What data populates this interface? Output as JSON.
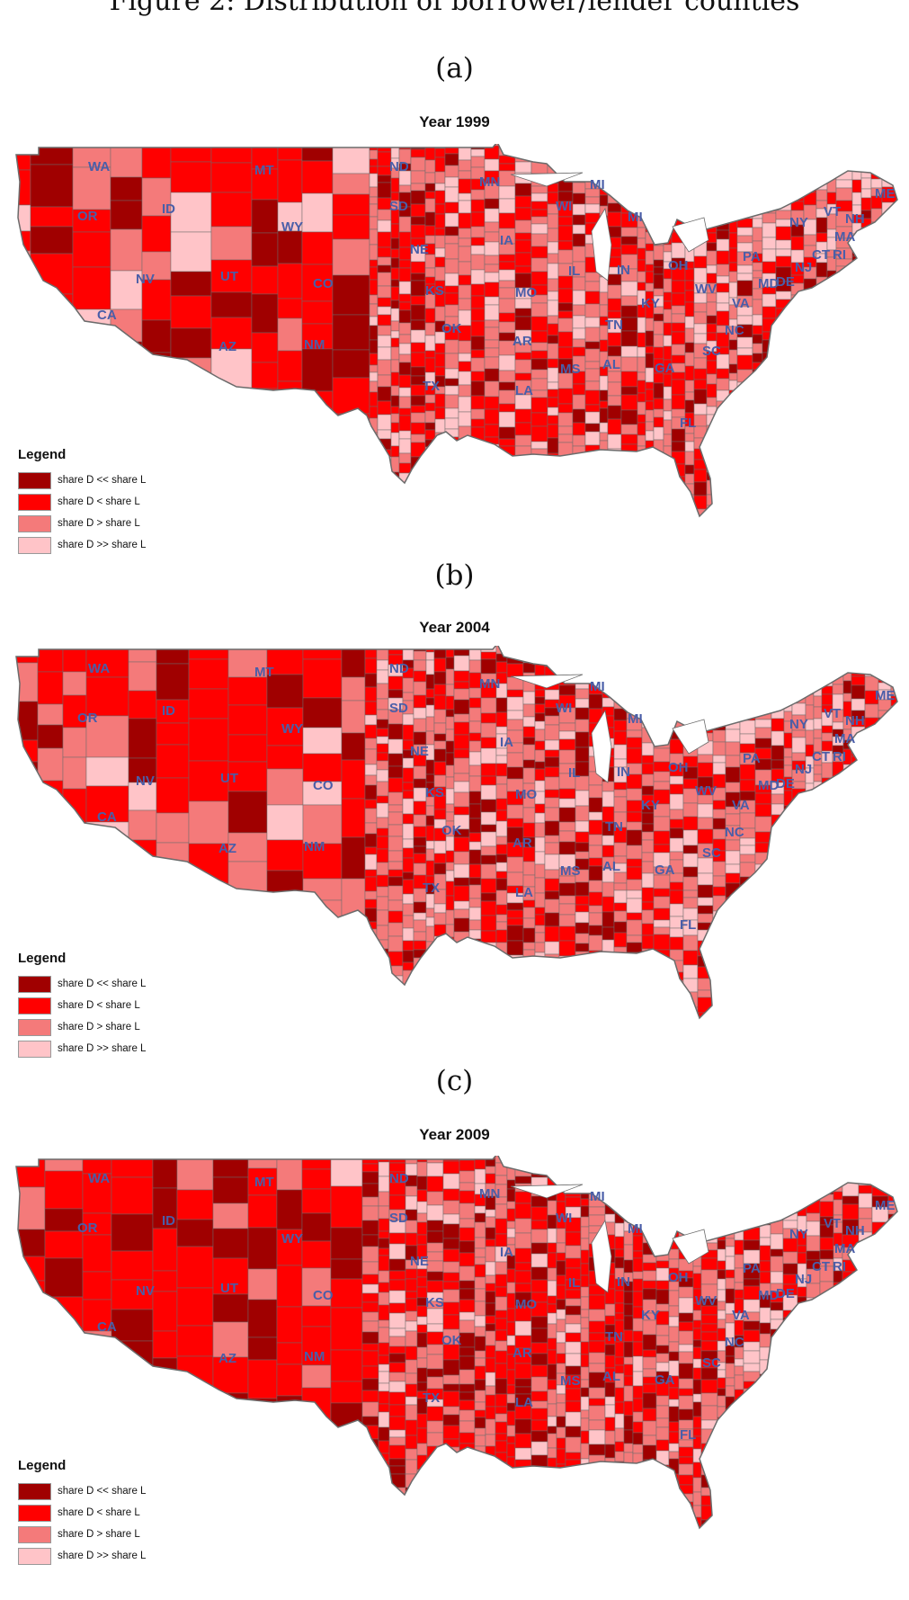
{
  "figure_caption": "Figure 2: Distribution of borrower/lender counties",
  "colors": {
    "share_D_much_less": "#a00000",
    "share_D_less": "#ff0000",
    "share_D_greater": "#f47a7a",
    "share_D_much_greater": "#ffc4c8",
    "state_label": "#4a5ea8",
    "border": "#6b6b6b"
  },
  "legend": {
    "title": "Legend",
    "items": [
      {
        "label": "share D << share L",
        "color": "#a00000"
      },
      {
        "label": "share D < share L",
        "color": "#ff0000"
      },
      {
        "label": "share D > share L",
        "color": "#f47a7a"
      },
      {
        "label": "share D >> share L",
        "color": "#ffc4c8"
      }
    ]
  },
  "panels": [
    {
      "letter": "(a)",
      "title": "Year 1999",
      "states": [
        "WA",
        "MT",
        "ND",
        "MN",
        "MI",
        "ME",
        "OR",
        "ID",
        "SD",
        "WI",
        "MI",
        "NY",
        "VT",
        "NH",
        "WY",
        "IA",
        "PA",
        "MA",
        "CT",
        "RI",
        "NJ",
        "NE",
        "IL",
        "IN",
        "OH",
        "NV",
        "UT",
        "CO",
        "KS",
        "MO",
        "WV",
        "MD",
        "DE",
        "KY",
        "VA",
        "CA",
        "OK",
        "TN",
        "NC",
        "AZ",
        "NM",
        "AR",
        "SC",
        "AL",
        "GA",
        "MS",
        "TX",
        "LA",
        "FL"
      ]
    },
    {
      "letter": "(b)",
      "title": "Year 2004",
      "states": [
        "WA",
        "MT",
        "ND",
        "MN",
        "MI",
        "ME",
        "OR",
        "ID",
        "SD",
        "WI",
        "MI",
        "NY",
        "VT",
        "NH",
        "WY",
        "IA",
        "PA",
        "MA",
        "CT",
        "RI",
        "NJ",
        "NE",
        "IL",
        "IN",
        "OH",
        "NV",
        "UT",
        "CO",
        "KS",
        "MO",
        "WV",
        "MD",
        "DE",
        "KY",
        "VA",
        "CA",
        "OK",
        "TN",
        "NC",
        "AZ",
        "NM",
        "AR",
        "SC",
        "AL",
        "GA",
        "MS",
        "TX",
        "LA",
        "FL"
      ]
    },
    {
      "letter": "(c)",
      "title": "Year 2009",
      "states": [
        "WA",
        "MT",
        "ND",
        "MN",
        "MI",
        "ME",
        "OR",
        "ID",
        "SD",
        "WI",
        "MI",
        "NY",
        "VT",
        "NH",
        "WY",
        "IA",
        "PA",
        "MA",
        "CT",
        "RI",
        "NJ",
        "NE",
        "IL",
        "IN",
        "OH",
        "NV",
        "UT",
        "CO",
        "KS",
        "MO",
        "WV",
        "MD",
        "DE",
        "KY",
        "VA",
        "CA",
        "OK",
        "TN",
        "NC",
        "AZ",
        "NM",
        "AR",
        "SC",
        "AL",
        "GA",
        "MS",
        "TX",
        "LA",
        "FL"
      ]
    }
  ]
}
